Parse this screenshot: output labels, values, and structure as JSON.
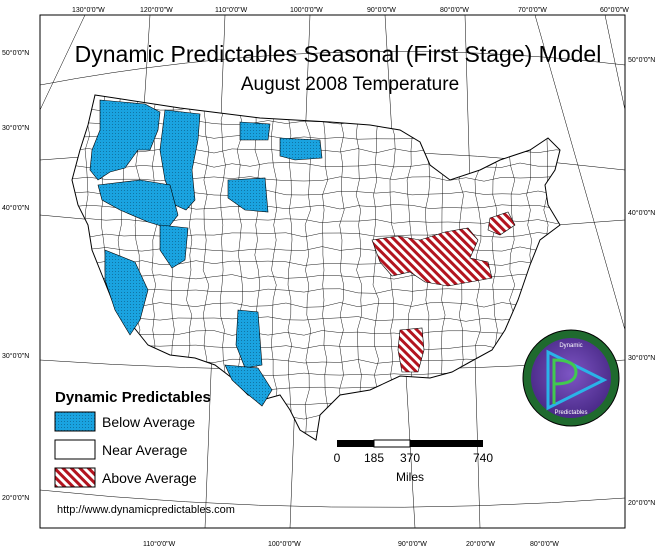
{
  "title": "Dynamic Predictables Seasonal (First Stage) Model",
  "subtitle": "August 2008 Temperature",
  "graticule": {
    "top": [
      "130°0'0\"W",
      "120°0'0\"W",
      "110°0'0\"W",
      "100°0'0\"W",
      "90°0'0\"W",
      "80°0'0\"W",
      "70°0'0\"W",
      "60°0'0\"W"
    ],
    "bottom": [
      "110°0'0\"W",
      "100°0'0\"W",
      "90°0'0\"W",
      "20°0'0\"W",
      "80°0'0\"W"
    ],
    "left": [
      "50°0'0\"N",
      "30°0'0\"N",
      "40°0'0\"N",
      "30°0'0\"N",
      "20°0'0\"N"
    ],
    "right": [
      "50°0'0\"N",
      "40°0'0\"N",
      "30°0'0\"N",
      "20°0'0\"N"
    ]
  },
  "legend": {
    "title": "Dynamic Predictables",
    "items": [
      {
        "label": "Below Average",
        "color": "#1aa3e0"
      },
      {
        "label": "Near Average",
        "color": "#ffffff"
      },
      {
        "label": "Above Average",
        "color": "#b3141f"
      }
    ]
  },
  "scalebar": {
    "ticks": [
      "0",
      "185",
      "370",
      "740"
    ],
    "unit": "Miles"
  },
  "url": "http://www.dynamicpredictables.com",
  "logo": {
    "top_text": "Dynamic",
    "bottom_text": "Predictables"
  },
  "colors": {
    "below": "#1aa3e0",
    "above_stripe": "#b3141f",
    "logo_ring": "#1f6a2e",
    "logo_inner": "#6a3fa8"
  }
}
